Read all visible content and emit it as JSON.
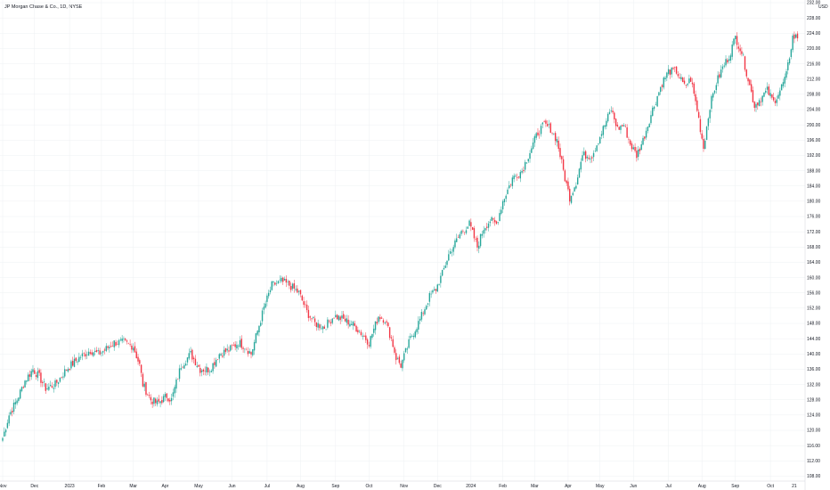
{
  "chart_data": {
    "type": "candlestick",
    "title": "JP Morgan Chase & Co., 1D, NYSE",
    "currency": "USD",
    "colors": {
      "up": "#26a69a",
      "down": "#f23645",
      "grid": "#eef0f3",
      "axis_text": "#131722",
      "axis_line": "#d1d4dc"
    },
    "ylim": [
      106,
      232
    ],
    "y_ticks": [
      "108.00",
      "112.00",
      "116.00",
      "120.00",
      "124.00",
      "128.00",
      "132.00",
      "136.00",
      "140.00",
      "144.00",
      "148.00",
      "152.00",
      "156.00",
      "160.00",
      "164.00",
      "168.00",
      "172.00",
      "176.00",
      "180.00",
      "184.00",
      "188.00",
      "192.00",
      "196.00",
      "200.00",
      "204.00",
      "208.00",
      "212.00",
      "216.00",
      "220.00",
      "224.00",
      "228.00",
      "232.00"
    ],
    "x_labels": [
      "Nov",
      "Dec",
      "2023",
      "Feb",
      "Mar",
      "Apr",
      "May",
      "Jun",
      "Jul",
      "Aug",
      "Sep",
      "Oct",
      "Nov",
      "Dec",
      "2024",
      "Feb",
      "Mar",
      "Apr",
      "May",
      "Jun",
      "Jul",
      "Aug",
      "Sep",
      "Oct",
      "21"
    ],
    "x_label_sessions": [
      0,
      20,
      42,
      62,
      82,
      102,
      123,
      144,
      166,
      187,
      209,
      230,
      252,
      273,
      294,
      314,
      334,
      355,
      375,
      396,
      418,
      439,
      460,
      482,
      497
    ],
    "anchors": [
      [
        0,
        118
      ],
      [
        4,
        124
      ],
      [
        9,
        128
      ],
      [
        14,
        133
      ],
      [
        19,
        136
      ],
      [
        23,
        134
      ],
      [
        27,
        131
      ],
      [
        33,
        132
      ],
      [
        40,
        136
      ],
      [
        48,
        139
      ],
      [
        55,
        141
      ],
      [
        60,
        140
      ],
      [
        64,
        141
      ],
      [
        70,
        143
      ],
      [
        76,
        143
      ],
      [
        82,
        142
      ],
      [
        86,
        137
      ],
      [
        88,
        132
      ],
      [
        93,
        128
      ],
      [
        97,
        127
      ],
      [
        100,
        128
      ],
      [
        103,
        129
      ],
      [
        106,
        128
      ],
      [
        112,
        137
      ],
      [
        118,
        140
      ],
      [
        124,
        136
      ],
      [
        130,
        136
      ],
      [
        136,
        140
      ],
      [
        142,
        141
      ],
      [
        148,
        143
      ],
      [
        152,
        142
      ],
      [
        156,
        140
      ],
      [
        160,
        146
      ],
      [
        164,
        152
      ],
      [
        169,
        158
      ],
      [
        175,
        159
      ],
      [
        180,
        158
      ],
      [
        186,
        156
      ],
      [
        191,
        151
      ],
      [
        196,
        148
      ],
      [
        202,
        147
      ],
      [
        208,
        150
      ],
      [
        214,
        149
      ],
      [
        219,
        148
      ],
      [
        224,
        146
      ],
      [
        230,
        143
      ],
      [
        236,
        150
      ],
      [
        240,
        149
      ],
      [
        244,
        144
      ],
      [
        247,
        139
      ],
      [
        250,
        137
      ],
      [
        256,
        144
      ],
      [
        262,
        149
      ],
      [
        268,
        155
      ],
      [
        272,
        157
      ],
      [
        276,
        161
      ],
      [
        280,
        166
      ],
      [
        284,
        169
      ],
      [
        288,
        172
      ],
      [
        293,
        174
      ],
      [
        298,
        168
      ],
      [
        302,
        173
      ],
      [
        306,
        175
      ],
      [
        310,
        174
      ],
      [
        314,
        180
      ],
      [
        320,
        186
      ],
      [
        326,
        188
      ],
      [
        332,
        194
      ],
      [
        336,
        198
      ],
      [
        340,
        200
      ],
      [
        344,
        199
      ],
      [
        348,
        196
      ],
      [
        353,
        186
      ],
      [
        356,
        181
      ],
      [
        360,
        185
      ],
      [
        364,
        192
      ],
      [
        370,
        192
      ],
      [
        374,
        196
      ],
      [
        378,
        200
      ],
      [
        382,
        204
      ],
      [
        386,
        199
      ],
      [
        390,
        200
      ],
      [
        394,
        195
      ],
      [
        398,
        192
      ],
      [
        402,
        196
      ],
      [
        408,
        204
      ],
      [
        414,
        211
      ],
      [
        418,
        214
      ],
      [
        423,
        214
      ],
      [
        428,
        210
      ],
      [
        432,
        212
      ],
      [
        436,
        204
      ],
      [
        440,
        194
      ],
      [
        444,
        205
      ],
      [
        448,
        211
      ],
      [
        452,
        215
      ],
      [
        456,
        218
      ],
      [
        460,
        223
      ],
      [
        464,
        219
      ],
      [
        468,
        212
      ],
      [
        472,
        205
      ],
      [
        476,
        207
      ],
      [
        480,
        209
      ],
      [
        484,
        206
      ],
      [
        488,
        209
      ],
      [
        492,
        213
      ],
      [
        496,
        223
      ]
    ]
  }
}
